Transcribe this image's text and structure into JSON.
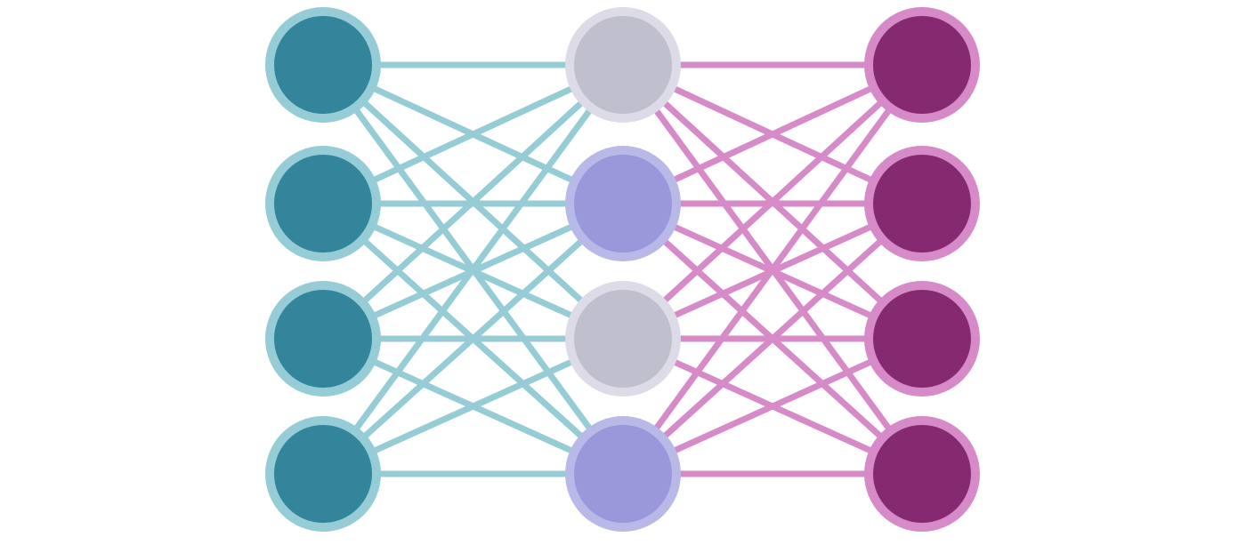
{
  "diagram": {
    "type": "fully-connected-network",
    "layers": [
      {
        "name": "input-layer",
        "nodes": [
          {
            "fill": "#32859A",
            "ring": "#95CCD6"
          },
          {
            "fill": "#32859A",
            "ring": "#95CCD6"
          },
          {
            "fill": "#32859A",
            "ring": "#95CCD6"
          },
          {
            "fill": "#32859A",
            "ring": "#95CCD6"
          }
        ]
      },
      {
        "name": "hidden-layer",
        "nodes": [
          {
            "fill": "#C0BFCE",
            "ring": "#DCDBE7"
          },
          {
            "fill": "#9898DA",
            "ring": "#B9B9E8"
          },
          {
            "fill": "#C0BFCE",
            "ring": "#DCDBE7"
          },
          {
            "fill": "#9898DA",
            "ring": "#B9B9E8"
          }
        ]
      },
      {
        "name": "output-layer",
        "nodes": [
          {
            "fill": "#852A70",
            "ring": "#D68AC7"
          },
          {
            "fill": "#852A70",
            "ring": "#D68AC7"
          },
          {
            "fill": "#852A70",
            "ring": "#D68AC7"
          },
          {
            "fill": "#852A70",
            "ring": "#D68AC7"
          }
        ]
      }
    ],
    "connections": [
      {
        "from_layer": 0,
        "to_layer": 1,
        "color": "#95CCD6"
      },
      {
        "from_layer": 1,
        "to_layer": 2,
        "color": "#D68AC7"
      }
    ]
  }
}
